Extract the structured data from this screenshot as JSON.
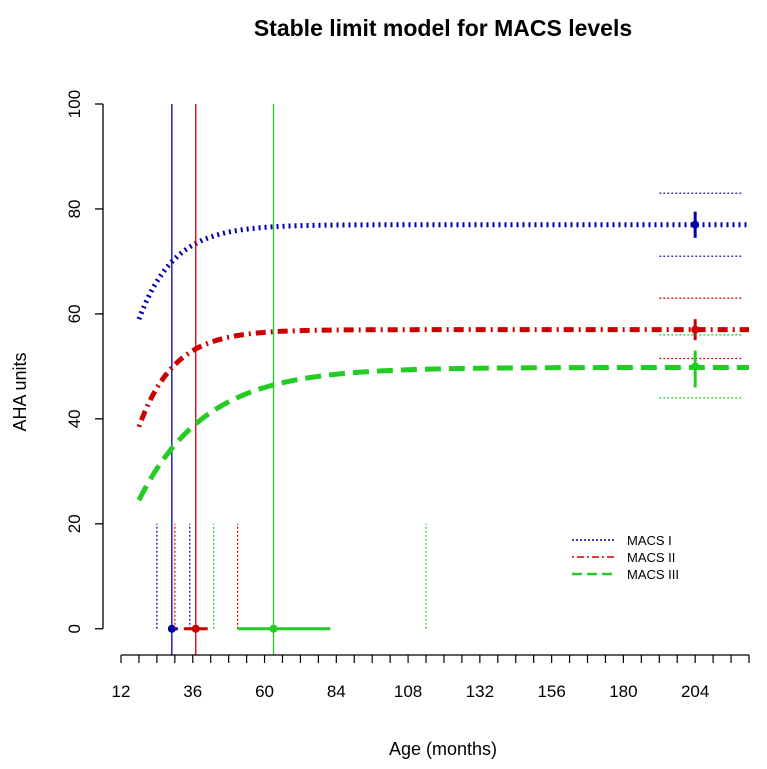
{
  "chart_data": {
    "type": "line",
    "title": "Stable limit model for MACS levels",
    "xlabel": "Age (months)",
    "ylabel": "AHA units",
    "xlim": [
      12,
      222
    ],
    "ylim": [
      -5,
      100
    ],
    "xticks": [
      12,
      36,
      60,
      84,
      108,
      132,
      156,
      180,
      204
    ],
    "xminor_step": 6,
    "yticks": [
      0,
      20,
      40,
      60,
      80,
      100
    ],
    "legend_position": "bottom-right",
    "series": [
      {
        "name": "MACS I",
        "color": "#0000aa",
        "linestyle": "dotted",
        "curve": {
          "limit": 77,
          "start_x": 18,
          "start_y": 59,
          "rate": 0.085,
          "end_x": 222
        },
        "half_limit_age": 29,
        "half_limit_age_ci": [
          28,
          31
        ],
        "age_dotted_lines": [
          24,
          35
        ],
        "limit_ci": [
          71,
          83
        ],
        "limit_marker": {
          "x": 204,
          "y": 77,
          "low": 74.5,
          "high": 79.5
        }
      },
      {
        "name": "MACS II",
        "color": "#cc0000",
        "linestyle": "dotdash",
        "curve": {
          "limit": 57,
          "start_x": 18,
          "start_y": 38.5,
          "rate": 0.085,
          "end_x": 222
        },
        "half_limit_age": 37,
        "half_limit_age_ci": [
          33,
          41
        ],
        "age_dotted_lines": [
          30,
          51
        ],
        "limit_ci": [
          51.5,
          63
        ],
        "limit_marker": {
          "x": 204,
          "y": 57,
          "low": 55,
          "high": 59
        }
      },
      {
        "name": "MACS III",
        "color": "#22cc22",
        "linestyle": "dashed",
        "curve": {
          "limit": 49.8,
          "start_x": 18,
          "start_y": 24.5,
          "rate": 0.045,
          "end_x": 222
        },
        "half_limit_age": 63,
        "half_limit_age_ci": [
          51,
          82
        ],
        "age_dotted_lines": [
          43,
          114
        ],
        "limit_ci": [
          44,
          56
        ],
        "limit_marker": {
          "x": 204,
          "y": 50,
          "low": 46,
          "high": 53
        }
      }
    ]
  }
}
